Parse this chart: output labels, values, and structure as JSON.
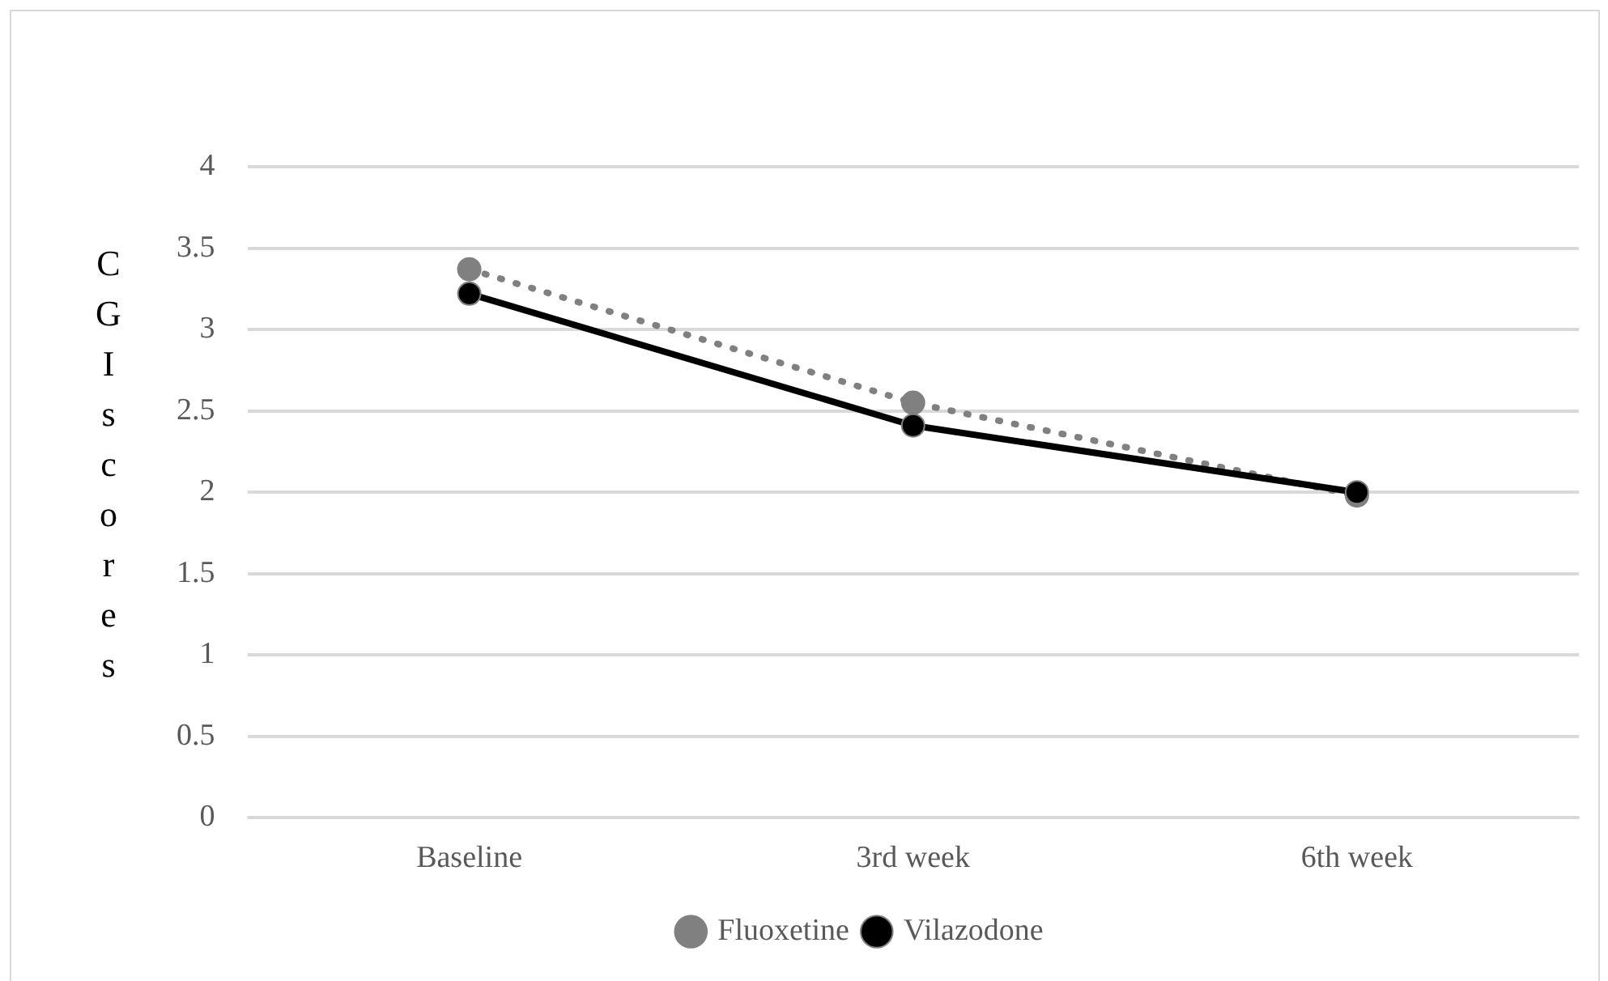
{
  "chart_data": {
    "type": "line",
    "ylabel": "CGI scores",
    "categories": [
      "Baseline",
      "3rd week",
      "6th week"
    ],
    "series": [
      {
        "name": "Fluoxetine",
        "color": "#808080",
        "values": [
          3.37,
          2.55,
          1.98
        ],
        "line_style": "dotted"
      },
      {
        "name": "Vilazodone",
        "color": "#000000",
        "values": [
          3.22,
          2.41,
          2.0
        ],
        "line_style": "solid"
      }
    ],
    "ylim": [
      0,
      4
    ],
    "yticks": [
      0,
      0.5,
      1,
      1.5,
      2,
      2.5,
      3,
      3.5,
      4
    ],
    "grid": "y",
    "legend": "bottom",
    "marker": "circle"
  }
}
